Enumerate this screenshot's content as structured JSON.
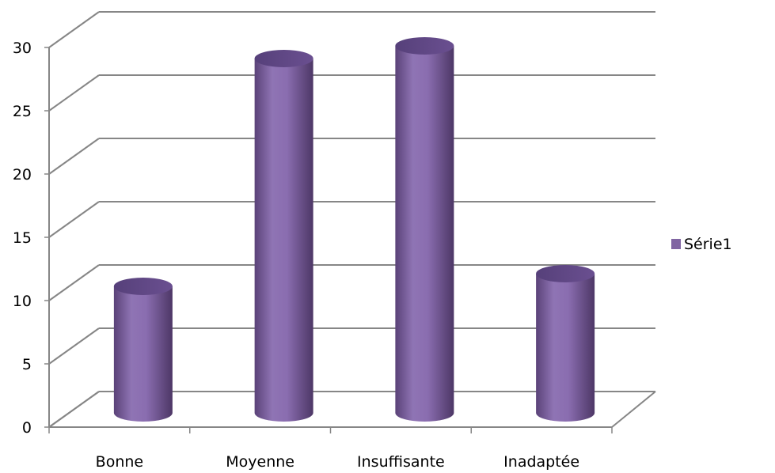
{
  "chart_data": {
    "type": "bar",
    "bar_shape": "cylinder",
    "three_d": true,
    "categories": [
      "Bonne",
      "Moyenne",
      "Insuffisante",
      "Inadaptée"
    ],
    "series": [
      {
        "name": "Série1",
        "values": [
          10,
          28,
          29,
          11
        ],
        "color": "#8064A2"
      }
    ],
    "ylim": [
      0,
      30
    ],
    "yticks": [
      0,
      5,
      10,
      15,
      20,
      25,
      30
    ],
    "grid": true,
    "legend_position": "right",
    "title": "",
    "xlabel": "",
    "ylabel": ""
  },
  "colors": {
    "series_base": "#8064A2",
    "grid": "#868686",
    "axis": "#868686"
  }
}
